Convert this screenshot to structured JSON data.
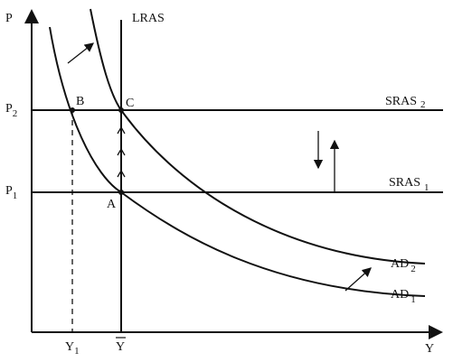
{
  "axes": {
    "y_label": "P",
    "x_label": "Y"
  },
  "price_levels": {
    "p2": {
      "text": "P",
      "sub": "2"
    },
    "p1": {
      "text": "P",
      "sub": "1"
    }
  },
  "outputs": {
    "y1": {
      "text": "Y",
      "sub": "1"
    },
    "ybar": "Y"
  },
  "curves": {
    "lras": "LRAS",
    "sras2": {
      "text": "SRAS",
      "sub": "2"
    },
    "sras1": {
      "text": "SRAS",
      "sub": "1"
    },
    "ad2": {
      "text": "AD",
      "sub": "2"
    },
    "ad1": {
      "text": "AD",
      "sub": "1"
    }
  },
  "points": {
    "a": "A",
    "b": "B",
    "c": "C"
  }
}
